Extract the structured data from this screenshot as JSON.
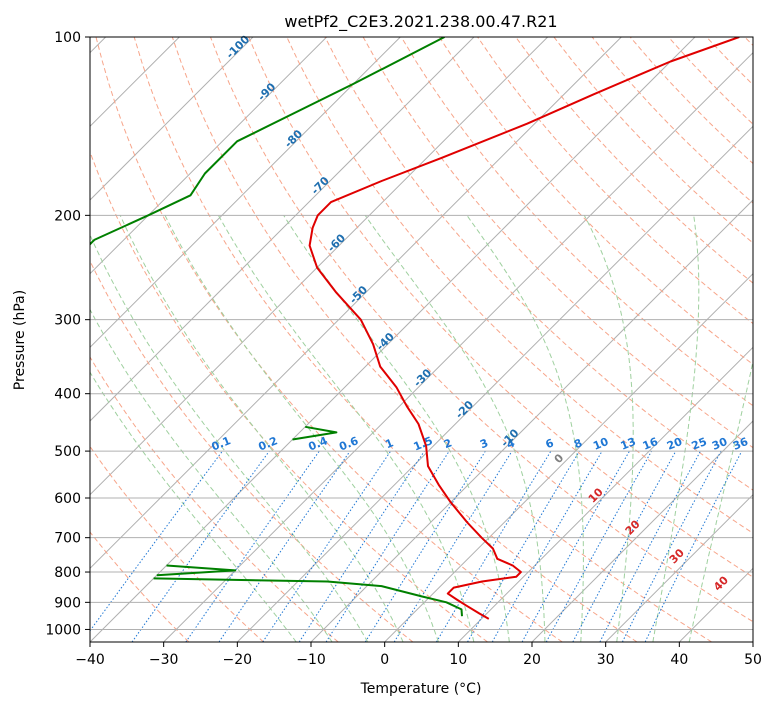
{
  "chart_data": {
    "type": "line",
    "title": "wetPf2_C2E3.2021.238.00.47.R21",
    "xlabel": "Temperature (°C)",
    "ylabel": "Pressure (hPa)",
    "xlim": [
      -40,
      50
    ],
    "ylim": [
      1050,
      100
    ],
    "y_scale": "log",
    "skew_degrees": 45,
    "grid": true,
    "x_ticks": [
      -40,
      -30,
      -20,
      -10,
      0,
      10,
      20,
      30,
      40,
      50
    ],
    "y_ticks": [
      100,
      200,
      300,
      400,
      500,
      600,
      700,
      800,
      900,
      1000
    ],
    "series": [
      {
        "color": "#e00000",
        "p": [
          100,
          110,
          125,
          140,
          160,
          175,
          190,
          200,
          210,
          225,
          245,
          270,
          300,
          330,
          360,
          390,
          420,
          450,
          490,
          530,
          570,
          610,
          660,
          700,
          730,
          760,
          780,
          800,
          815,
          830,
          850,
          870,
          890,
          910,
          940,
          960
        ],
        "t": [
          -34,
          -40,
          -46,
          -51,
          -58,
          -63,
          -67,
          -67,
          -66,
          -64,
          -60,
          -54,
          -47,
          -42,
          -38,
          -33,
          -29,
          -25,
          -21,
          -18,
          -14,
          -10,
          -5,
          -1,
          2,
          4,
          7,
          9,
          9,
          5,
          2,
          2,
          4,
          6,
          9,
          11
        ]
      },
      {
        "color": "#008000",
        "p": [
          100,
          120,
          150,
          170,
          185,
          200,
          220,
          240,
          255,
          270,
          290,
          310,
          330,
          345
        ],
        "t": [
          -74,
          -80,
          -88,
          -88,
          -87,
          -90,
          -94,
          -94,
          -92,
          -88,
          -85,
          -83,
          -82,
          -88
        ]
      },
      {
        "color": "#008000",
        "p": [
          455,
          465,
          478
        ],
        "t": [
          -40,
          -35,
          -40
        ]
      },
      {
        "color": "#008000",
        "p": [
          780,
          795,
          810
        ],
        "t": [
          -40,
          -30,
          -40
        ]
      },
      {
        "color": "#008000",
        "p": [
          820,
          830,
          845,
          860,
          880,
          900,
          925,
          950
        ],
        "t": [
          -40,
          -16,
          -8,
          -5,
          -1,
          3,
          6,
          7
        ]
      }
    ],
    "dry_adiabat_labels": [
      "-100",
      "-90",
      "-80",
      "-70",
      "-60",
      "-50",
      "-40",
      "-30",
      "-20",
      "-10"
    ],
    "mixing_ratio_labels": [
      "0.1",
      "0.2",
      "0.4",
      "0.6",
      "1",
      "1.5",
      "2",
      "3",
      "4",
      "6",
      "8",
      "10",
      "13",
      "16",
      "20",
      "25",
      "30",
      "36"
    ],
    "moist_adiabat_labels": [
      "0",
      "10",
      "20",
      "30",
      "40"
    ],
    "colors": {
      "temperature": "#e00000",
      "dewpoint": "#008000",
      "isotherm": "#b0b0b0",
      "dry_adiabat": "#f7a58a",
      "moist_adiabat": "#9fd09f",
      "mixing_ratio": "#1f77d4",
      "grid": "#b0b0b0",
      "label_blue": "#1f6fb0",
      "label_red": "#d62728",
      "label_gray": "#808080"
    }
  }
}
